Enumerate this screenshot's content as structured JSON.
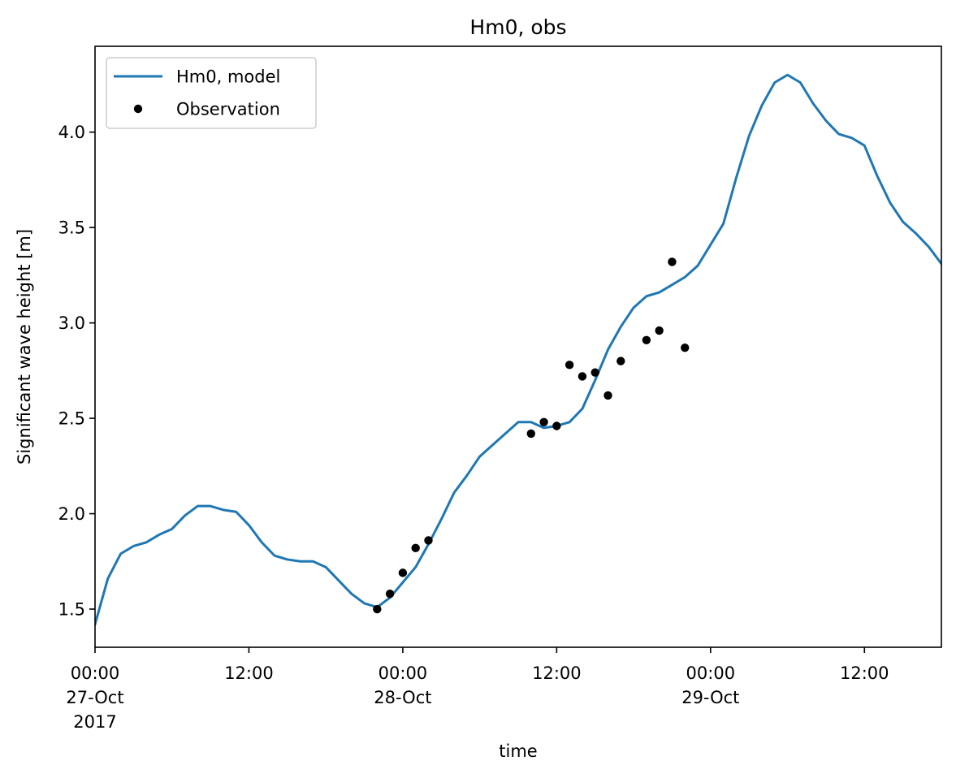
{
  "chart_data": {
    "type": "line",
    "title": "Hm0, obs",
    "xlabel": "time",
    "ylabel": "Significant wave height [m]",
    "xlim": [
      "2017-10-27T00:00",
      "2017-10-29T18:00"
    ],
    "ylim": [
      1.3,
      4.45
    ],
    "yticks": [
      "1.5",
      "2.0",
      "2.5",
      "3.0",
      "3.5",
      "4.0"
    ],
    "xticks": [
      {
        "t": "2017-10-27T00:00",
        "lines": [
          "00:00",
          "27-Oct",
          "2017"
        ]
      },
      {
        "t": "2017-10-27T12:00",
        "lines": [
          "12:00"
        ]
      },
      {
        "t": "2017-10-28T00:00",
        "lines": [
          "00:00",
          "28-Oct"
        ]
      },
      {
        "t": "2017-10-28T12:00",
        "lines": [
          "12:00"
        ]
      },
      {
        "t": "2017-10-29T00:00",
        "lines": [
          "00:00",
          "29-Oct"
        ]
      },
      {
        "t": "2017-10-29T12:00",
        "lines": [
          "12:00"
        ]
      }
    ],
    "grid": false,
    "legend": {
      "position": "top-left",
      "entries": [
        "Hm0, model",
        "Observation"
      ]
    },
    "series": [
      {
        "name": "Hm0, model",
        "type": "line",
        "color": "#1f77b4",
        "x": [
          "2017-10-27T00:00",
          "2017-10-27T01:00",
          "2017-10-27T02:00",
          "2017-10-27T03:00",
          "2017-10-27T04:00",
          "2017-10-27T05:00",
          "2017-10-27T06:00",
          "2017-10-27T07:00",
          "2017-10-27T08:00",
          "2017-10-27T09:00",
          "2017-10-27T10:00",
          "2017-10-27T11:00",
          "2017-10-27T12:00",
          "2017-10-27T13:00",
          "2017-10-27T14:00",
          "2017-10-27T15:00",
          "2017-10-27T16:00",
          "2017-10-27T17:00",
          "2017-10-27T18:00",
          "2017-10-27T19:00",
          "2017-10-27T20:00",
          "2017-10-27T21:00",
          "2017-10-27T22:00",
          "2017-10-27T23:00",
          "2017-10-28T00:00",
          "2017-10-28T01:00",
          "2017-10-28T02:00",
          "2017-10-28T03:00",
          "2017-10-28T04:00",
          "2017-10-28T05:00",
          "2017-10-28T06:00",
          "2017-10-28T07:00",
          "2017-10-28T08:00",
          "2017-10-28T09:00",
          "2017-10-28T10:00",
          "2017-10-28T11:00",
          "2017-10-28T12:00",
          "2017-10-28T13:00",
          "2017-10-28T14:00",
          "2017-10-28T15:00",
          "2017-10-28T16:00",
          "2017-10-28T17:00",
          "2017-10-28T18:00",
          "2017-10-28T19:00",
          "2017-10-28T20:00",
          "2017-10-28T21:00",
          "2017-10-28T22:00",
          "2017-10-28T23:00",
          "2017-10-29T00:00",
          "2017-10-29T01:00",
          "2017-10-29T02:00",
          "2017-10-29T03:00",
          "2017-10-29T04:00",
          "2017-10-29T05:00",
          "2017-10-29T06:00",
          "2017-10-29T07:00",
          "2017-10-29T08:00",
          "2017-10-29T09:00",
          "2017-10-29T10:00",
          "2017-10-29T11:00",
          "2017-10-29T12:00",
          "2017-10-29T13:00",
          "2017-10-29T14:00",
          "2017-10-29T15:00",
          "2017-10-29T16:00",
          "2017-10-29T17:00",
          "2017-10-29T18:00"
        ],
        "y": [
          1.42,
          1.66,
          1.79,
          1.83,
          1.85,
          1.89,
          1.92,
          1.99,
          2.04,
          2.04,
          2.02,
          2.01,
          1.94,
          1.85,
          1.78,
          1.76,
          1.75,
          1.75,
          1.72,
          1.65,
          1.58,
          1.53,
          1.51,
          1.56,
          1.64,
          1.72,
          1.84,
          1.97,
          2.11,
          2.2,
          2.3,
          2.36,
          2.42,
          2.48,
          2.48,
          2.45,
          2.46,
          2.48,
          2.55,
          2.7,
          2.86,
          2.98,
          3.08,
          3.14,
          3.16,
          3.2,
          3.24,
          3.3,
          3.41,
          3.52,
          3.76,
          3.98,
          4.14,
          4.26,
          4.3,
          4.26,
          4.15,
          4.06,
          3.99,
          3.97,
          3.93,
          3.77,
          3.63,
          3.53,
          3.47,
          3.4,
          3.31
        ]
      },
      {
        "name": "Observation",
        "type": "scatter",
        "color": "#000000",
        "x": [
          "2017-10-27T22:00",
          "2017-10-27T23:00",
          "2017-10-28T00:00",
          "2017-10-28T01:00",
          "2017-10-28T02:00",
          "2017-10-28T10:00",
          "2017-10-28T11:00",
          "2017-10-28T12:00",
          "2017-10-28T13:00",
          "2017-10-28T14:00",
          "2017-10-28T15:00",
          "2017-10-28T16:00",
          "2017-10-28T17:00",
          "2017-10-28T19:00",
          "2017-10-28T20:00",
          "2017-10-28T21:00",
          "2017-10-28T22:00"
        ],
        "y": [
          1.5,
          1.58,
          1.69,
          1.82,
          1.86,
          2.42,
          2.48,
          2.46,
          2.78,
          2.72,
          2.74,
          2.62,
          2.8,
          2.91,
          2.96,
          3.32,
          2.87
        ]
      }
    ]
  }
}
